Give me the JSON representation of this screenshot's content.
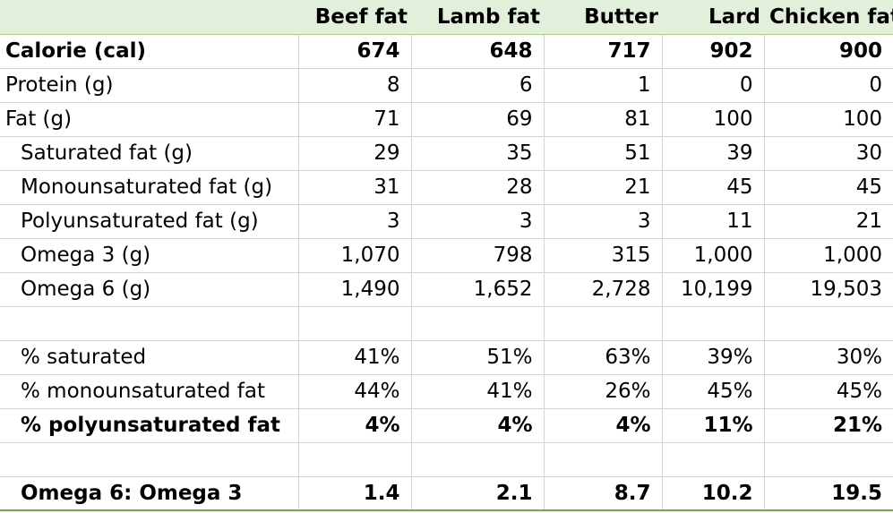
{
  "headers": [
    "",
    "Beef fat",
    "Lamb fat",
    "Butter",
    "Lard",
    "Chicken fat"
  ],
  "rows": [
    {
      "label": "Calorie (cal)",
      "values": [
        "674",
        "648",
        "717",
        "902",
        "900"
      ],
      "bold": true,
      "indent": false
    },
    {
      "label": "Protein (g)",
      "values": [
        "8",
        "6",
        "1",
        "0",
        "0"
      ],
      "bold": false,
      "indent": false
    },
    {
      "label": "Fat (g)",
      "values": [
        "71",
        "69",
        "81",
        "100",
        "100"
      ],
      "bold": false,
      "indent": false
    },
    {
      "label": "Saturated fat (g)",
      "values": [
        "29",
        "35",
        "51",
        "39",
        "30"
      ],
      "bold": false,
      "indent": true
    },
    {
      "label": "Monounsaturated fat (g)",
      "values": [
        "31",
        "28",
        "21",
        "45",
        "45"
      ],
      "bold": false,
      "indent": true
    },
    {
      "label": "Polyunsaturated fat (g)",
      "values": [
        "3",
        "3",
        "3",
        "11",
        "21"
      ],
      "bold": false,
      "indent": true
    },
    {
      "label": "Omega 3 (g)",
      "values": [
        "1,070",
        "798",
        "315",
        "1,000",
        "1,000"
      ],
      "bold": false,
      "indent": true
    },
    {
      "label": "Omega 6 (g)",
      "values": [
        "1,490",
        "1,652",
        "2,728",
        "10,199",
        "19,503"
      ],
      "bold": false,
      "indent": true
    },
    {
      "label": "",
      "values": [
        "",
        "",
        "",
        "",
        ""
      ],
      "bold": false,
      "indent": false
    },
    {
      "label": "% saturated",
      "values": [
        "41%",
        "51%",
        "63%",
        "39%",
        "30%"
      ],
      "bold": false,
      "indent": true
    },
    {
      "label": "% monounsaturated fat",
      "values": [
        "44%",
        "41%",
        "26%",
        "45%",
        "45%"
      ],
      "bold": false,
      "indent": true
    },
    {
      "label": "% polyunsaturated fat",
      "values": [
        "4%",
        "4%",
        "4%",
        "11%",
        "21%"
      ],
      "bold": true,
      "indent": true
    },
    {
      "label": "",
      "values": [
        "",
        "",
        "",
        "",
        ""
      ],
      "bold": false,
      "indent": false
    },
    {
      "label": "Omega 6: Omega 3",
      "values": [
        "1.4",
        "2.1",
        "8.7",
        "10.2",
        "19.5"
      ],
      "bold": true,
      "indent": true
    }
  ]
}
